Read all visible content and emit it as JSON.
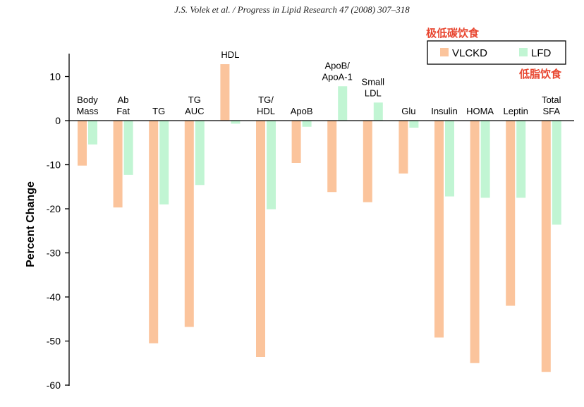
{
  "header": "J.S. Volek et al. / Progress in Lipid Research 47 (2008) 307–318",
  "annotations": {
    "vlckd_cn": "极低碳饮食",
    "lfd_cn": "低脂饮食"
  },
  "colors": {
    "vlckd": "#fbc49c",
    "lfd": "#c1f5d3",
    "axis": "#000000",
    "annotation": "#e8452f"
  },
  "chart_data": {
    "type": "bar",
    "title": "",
    "xlabel": "",
    "ylabel": "Percent Change",
    "ylim": [
      -60,
      15
    ],
    "yticks": [
      10,
      0,
      -10,
      -20,
      -30,
      -40,
      -50,
      -60
    ],
    "grid": false,
    "legend": "top-right",
    "categories": [
      [
        "Body",
        "Mass"
      ],
      [
        "Ab",
        "Fat"
      ],
      [
        "TG"
      ],
      [
        "TG",
        "AUC"
      ],
      [
        "HDL"
      ],
      [
        "TG/",
        "HDL"
      ],
      [
        "ApoB"
      ],
      [
        "ApoB/",
        "ApoA-1"
      ],
      [
        "Small",
        "LDL"
      ],
      [
        "Glu"
      ],
      [
        "Insulin"
      ],
      [
        "HOMA"
      ],
      [
        "Leptin"
      ],
      [
        "Total",
        "SFA"
      ]
    ],
    "series": [
      {
        "name": "VLCKD",
        "values": [
          -10.2,
          -19.7,
          -50.5,
          -46.8,
          12.8,
          -53.6,
          -9.6,
          -16.2,
          -18.5,
          -12.0,
          -49.2,
          -55.0,
          -42.0,
          -57.0
        ]
      },
      {
        "name": "LFD",
        "values": [
          -5.4,
          -12.3,
          -19.0,
          -14.6,
          -0.7,
          -20.1,
          -1.4,
          7.8,
          4.1,
          -1.6,
          -17.2,
          -17.5,
          -17.5,
          -23.6
        ]
      }
    ]
  }
}
